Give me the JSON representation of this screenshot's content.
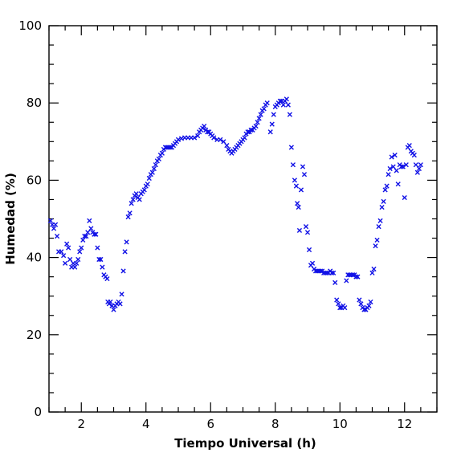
{
  "chart_data": {
    "type": "scatter",
    "xlabel": "Tiempo Universal (h)",
    "ylabel": "Humedad (%)",
    "xlim": [
      1,
      13
    ],
    "ylim": [
      0,
      100
    ],
    "xticks": [
      2,
      4,
      6,
      8,
      10,
      12
    ],
    "yticks": [
      0,
      20,
      40,
      60,
      80,
      100
    ],
    "grid": false,
    "marker": "x",
    "color": "#1010e6",
    "series": [
      {
        "points": [
          [
            1.05,
            49.5
          ],
          [
            1.1,
            48.5
          ],
          [
            1.15,
            47.5
          ],
          [
            1.2,
            48.5
          ],
          [
            1.25,
            45.5
          ],
          [
            1.3,
            41.5
          ],
          [
            1.38,
            41.5
          ],
          [
            1.45,
            40.5
          ],
          [
            1.5,
            38.5
          ],
          [
            1.55,
            43.5
          ],
          [
            1.6,
            42.5
          ],
          [
            1.65,
            39.5
          ],
          [
            1.7,
            37.5
          ],
          [
            1.75,
            38.5
          ],
          [
            1.8,
            37.5
          ],
          [
            1.85,
            38.5
          ],
          [
            1.9,
            39.5
          ],
          [
            1.95,
            41.5
          ],
          [
            2.0,
            42.5
          ],
          [
            2.05,
            44.5
          ],
          [
            2.1,
            45.5
          ],
          [
            2.15,
            45.5
          ],
          [
            2.2,
            46.5
          ],
          [
            2.25,
            49.5
          ],
          [
            2.3,
            47.5
          ],
          [
            2.35,
            46.5
          ],
          [
            2.4,
            46
          ],
          [
            2.45,
            46
          ],
          [
            2.5,
            42.5
          ],
          [
            2.55,
            39.5
          ],
          [
            2.6,
            39.5
          ],
          [
            2.65,
            37.5
          ],
          [
            2.7,
            35.5
          ],
          [
            2.75,
            35
          ],
          [
            2.8,
            34.5
          ],
          [
            2.82,
            28.5
          ],
          [
            2.86,
            28
          ],
          [
            2.9,
            28.5
          ],
          [
            2.95,
            27.5
          ],
          [
            3.0,
            26.5
          ],
          [
            3.05,
            27.5
          ],
          [
            3.1,
            28
          ],
          [
            3.15,
            28.5
          ],
          [
            3.2,
            28
          ],
          [
            3.25,
            30.5
          ],
          [
            3.3,
            36.5
          ],
          [
            3.35,
            41.5
          ],
          [
            3.4,
            44
          ],
          [
            3.45,
            50.5
          ],
          [
            3.5,
            51.5
          ],
          [
            3.55,
            54
          ],
          [
            3.6,
            55
          ],
          [
            3.65,
            56
          ],
          [
            3.7,
            56.5
          ],
          [
            3.75,
            55.5
          ],
          [
            3.8,
            55
          ],
          [
            3.85,
            56.5
          ],
          [
            3.9,
            57
          ],
          [
            3.95,
            57.5
          ],
          [
            4.0,
            58.5
          ],
          [
            4.05,
            59
          ],
          [
            4.1,
            60.5
          ],
          [
            4.15,
            61.5
          ],
          [
            4.2,
            62
          ],
          [
            4.25,
            63
          ],
          [
            4.3,
            64
          ],
          [
            4.35,
            65
          ],
          [
            4.4,
            65.5
          ],
          [
            4.45,
            66.5
          ],
          [
            4.5,
            67
          ],
          [
            4.55,
            68
          ],
          [
            4.6,
            68.5
          ],
          [
            4.65,
            68.5
          ],
          [
            4.7,
            68.5
          ],
          [
            4.75,
            68.5
          ],
          [
            4.8,
            68.5
          ],
          [
            4.85,
            69
          ],
          [
            4.9,
            69.5
          ],
          [
            4.95,
            70
          ],
          [
            5.0,
            70.5
          ],
          [
            5.1,
            70.8
          ],
          [
            5.2,
            71
          ],
          [
            5.3,
            71
          ],
          [
            5.4,
            71
          ],
          [
            5.5,
            71
          ],
          [
            5.6,
            71.5
          ],
          [
            5.65,
            72.5
          ],
          [
            5.7,
            73
          ],
          [
            5.75,
            73.5
          ],
          [
            5.8,
            74
          ],
          [
            5.85,
            73
          ],
          [
            5.9,
            72.5
          ],
          [
            5.95,
            72.5
          ],
          [
            6.0,
            72
          ],
          [
            6.05,
            71.5
          ],
          [
            6.1,
            71
          ],
          [
            6.2,
            70.5
          ],
          [
            6.3,
            70.5
          ],
          [
            6.4,
            70
          ],
          [
            6.5,
            69
          ],
          [
            6.55,
            68
          ],
          [
            6.6,
            67.5
          ],
          [
            6.65,
            67
          ],
          [
            6.7,
            67.5
          ],
          [
            6.75,
            68
          ],
          [
            6.8,
            68.5
          ],
          [
            6.85,
            69
          ],
          [
            6.9,
            69.5
          ],
          [
            6.95,
            70
          ],
          [
            7.0,
            70.5
          ],
          [
            7.05,
            71
          ],
          [
            7.1,
            72
          ],
          [
            7.15,
            72.5
          ],
          [
            7.2,
            72.5
          ],
          [
            7.25,
            73
          ],
          [
            7.3,
            73
          ],
          [
            7.35,
            73.5
          ],
          [
            7.4,
            74
          ],
          [
            7.45,
            75
          ],
          [
            7.5,
            76
          ],
          [
            7.55,
            77
          ],
          [
            7.6,
            78
          ],
          [
            7.65,
            78.5
          ],
          [
            7.7,
            79.5
          ],
          [
            7.75,
            80
          ],
          [
            7.85,
            72.5
          ],
          [
            7.9,
            74.5
          ],
          [
            7.95,
            77
          ],
          [
            8.0,
            79
          ],
          [
            8.05,
            79.5
          ],
          [
            8.1,
            80
          ],
          [
            8.15,
            80.5
          ],
          [
            8.2,
            80.5
          ],
          [
            8.25,
            79.5
          ],
          [
            8.3,
            80.5
          ],
          [
            8.35,
            81
          ],
          [
            8.4,
            79.5
          ],
          [
            8.45,
            77
          ],
          [
            8.5,
            68.5
          ],
          [
            8.55,
            64
          ],
          [
            8.6,
            60
          ],
          [
            8.65,
            58.5
          ],
          [
            8.68,
            54
          ],
          [
            8.72,
            53
          ],
          [
            8.75,
            47
          ],
          [
            8.8,
            57.5
          ],
          [
            8.85,
            63.5
          ],
          [
            8.9,
            61.5
          ],
          [
            8.95,
            48
          ],
          [
            9.0,
            46.5
          ],
          [
            9.05,
            42
          ],
          [
            9.1,
            38
          ],
          [
            9.15,
            38.5
          ],
          [
            9.2,
            37
          ],
          [
            9.25,
            36.5
          ],
          [
            9.3,
            36.5
          ],
          [
            9.35,
            36.5
          ],
          [
            9.4,
            36.5
          ],
          [
            9.45,
            36.5
          ],
          [
            9.5,
            36
          ],
          [
            9.55,
            36
          ],
          [
            9.6,
            36
          ],
          [
            9.65,
            36
          ],
          [
            9.7,
            36.5
          ],
          [
            9.75,
            36
          ],
          [
            9.8,
            36
          ],
          [
            9.85,
            33.5
          ],
          [
            9.9,
            29
          ],
          [
            9.95,
            28
          ],
          [
            10.0,
            27
          ],
          [
            10.05,
            27
          ],
          [
            10.1,
            27.5
          ],
          [
            10.15,
            27
          ],
          [
            10.2,
            34
          ],
          [
            10.25,
            35.5
          ],
          [
            10.3,
            35.5
          ],
          [
            10.35,
            35.5
          ],
          [
            10.4,
            35.5
          ],
          [
            10.45,
            35.5
          ],
          [
            10.5,
            35
          ],
          [
            10.55,
            35
          ],
          [
            10.6,
            29
          ],
          [
            10.65,
            28
          ],
          [
            10.7,
            27
          ],
          [
            10.75,
            26.5
          ],
          [
            10.8,
            26.5
          ],
          [
            10.85,
            27
          ],
          [
            10.9,
            27.5
          ],
          [
            10.95,
            28.5
          ],
          [
            11.0,
            36
          ],
          [
            11.05,
            37
          ],
          [
            11.1,
            43
          ],
          [
            11.15,
            44.5
          ],
          [
            11.2,
            48
          ],
          [
            11.25,
            49.5
          ],
          [
            11.3,
            53
          ],
          [
            11.35,
            54.5
          ],
          [
            11.4,
            57.5
          ],
          [
            11.45,
            58.5
          ],
          [
            11.5,
            61.5
          ],
          [
            11.55,
            63
          ],
          [
            11.6,
            66
          ],
          [
            11.65,
            63.5
          ],
          [
            11.7,
            66.5
          ],
          [
            11.75,
            62.5
          ],
          [
            11.8,
            59
          ],
          [
            11.85,
            64
          ],
          [
            11.9,
            63.5
          ],
          [
            11.95,
            63.5
          ],
          [
            12.0,
            55.5
          ],
          [
            12.05,
            64
          ],
          [
            12.1,
            68.5
          ],
          [
            12.15,
            69
          ],
          [
            12.2,
            67.5
          ],
          [
            12.25,
            67
          ],
          [
            12.3,
            66.5
          ],
          [
            12.35,
            64
          ],
          [
            12.4,
            62
          ],
          [
            12.45,
            63
          ],
          [
            12.5,
            64
          ]
        ]
      }
    ]
  }
}
